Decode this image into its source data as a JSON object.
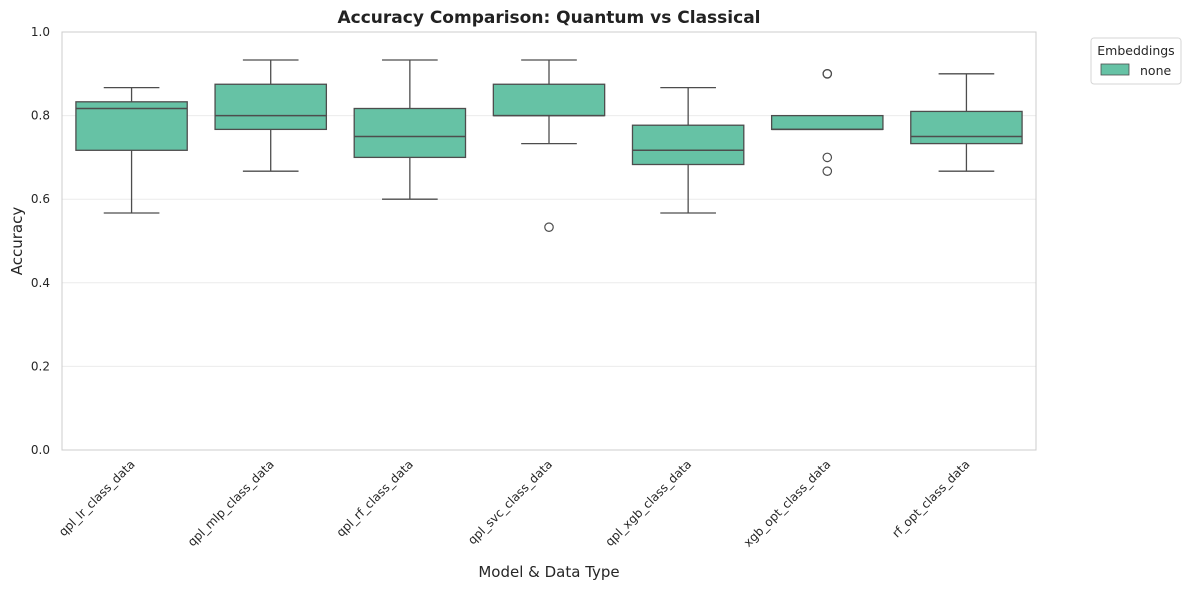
{
  "chart_data": {
    "type": "box",
    "title": "Accuracy Comparison: Quantum vs Classical",
    "xlabel": "Model & Data Type",
    "ylabel": "Accuracy",
    "ylim": [
      0.0,
      1.0
    ],
    "yticks": [
      "0.0",
      "0.2",
      "0.4",
      "0.6",
      "0.8",
      "1.0"
    ],
    "grid": "horizontal",
    "legend": {
      "title": "Embeddings",
      "placement": "outside-top-right",
      "entries": [
        {
          "name": "none",
          "color": "#66c2a5"
        }
      ]
    },
    "colors": {
      "box_fill": "#66c2a5",
      "box_line": "#4d4d4d",
      "grid": "#ebebeb",
      "frame": "#cccccc"
    },
    "categories": [
      "qpl_lr_class_data",
      "qpl_mlp_class_data",
      "qpl_rf_class_data",
      "qpl_svc_class_data",
      "qpl_xgb_class_data",
      "xgb_opt_class_data",
      "rf_opt_class_data"
    ],
    "series": [
      {
        "name": "none",
        "boxes": [
          {
            "whisker_low": 0.567,
            "q1": 0.717,
            "median": 0.817,
            "q3": 0.833,
            "whisker_high": 0.867,
            "outliers": []
          },
          {
            "whisker_low": 0.667,
            "q1": 0.767,
            "median": 0.8,
            "q3": 0.875,
            "whisker_high": 0.933,
            "outliers": []
          },
          {
            "whisker_low": 0.6,
            "q1": 0.7,
            "median": 0.75,
            "q3": 0.817,
            "whisker_high": 0.933,
            "outliers": []
          },
          {
            "whisker_low": 0.733,
            "q1": 0.8,
            "median": 0.8,
            "q3": 0.875,
            "whisker_high": 0.933,
            "outliers": [
              0.533
            ]
          },
          {
            "whisker_low": 0.567,
            "q1": 0.683,
            "median": 0.717,
            "q3": 0.777,
            "whisker_high": 0.867,
            "outliers": []
          },
          {
            "whisker_low": 0.767,
            "q1": 0.767,
            "median": 0.767,
            "q3": 0.8,
            "whisker_high": 0.8,
            "outliers": [
              0.9,
              0.9,
              0.7,
              0.667
            ]
          },
          {
            "whisker_low": 0.667,
            "q1": 0.733,
            "median": 0.75,
            "q3": 0.81,
            "whisker_high": 0.9,
            "outliers": []
          }
        ]
      }
    ]
  }
}
